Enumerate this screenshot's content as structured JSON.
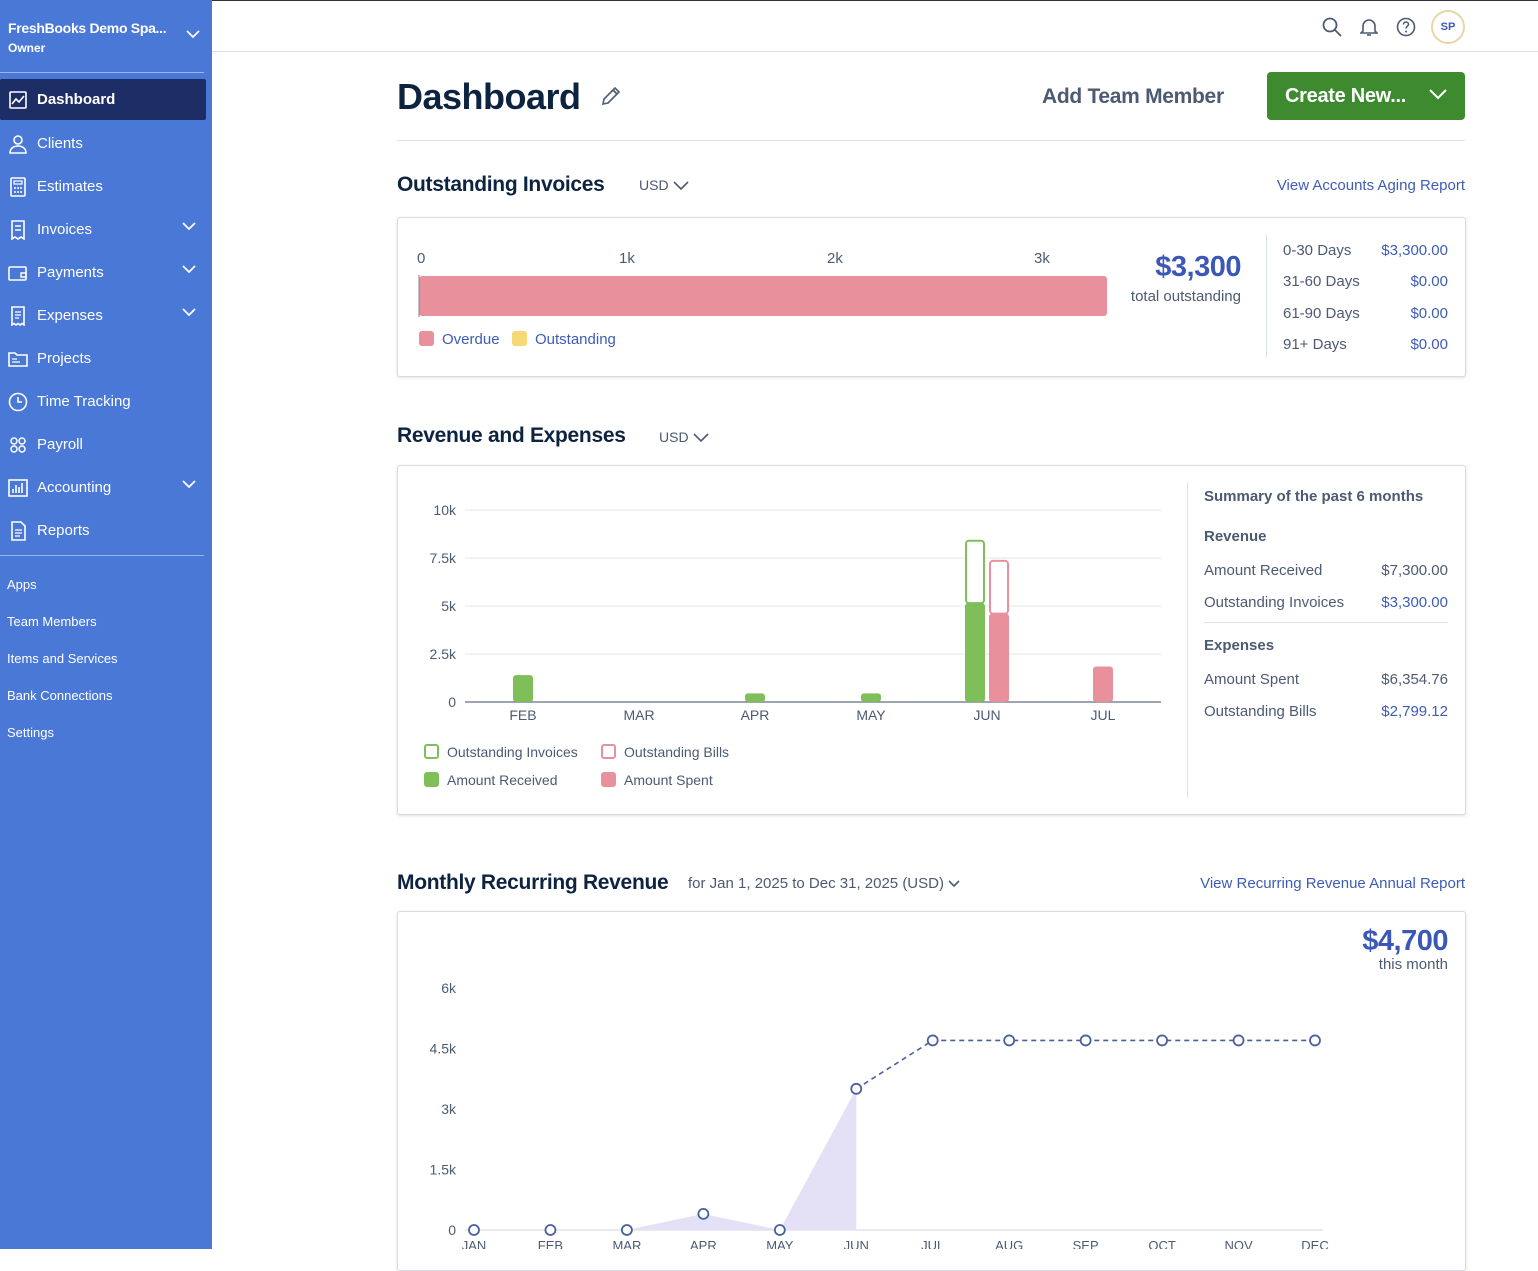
{
  "sidebar": {
    "business_name": "FreshBooks Demo Spa...",
    "role": "Owner",
    "nav": [
      {
        "label": "Dashboard",
        "icon": "chart-icon"
      },
      {
        "label": "Clients",
        "icon": "user-icon"
      },
      {
        "label": "Estimates",
        "icon": "calculator-icon"
      },
      {
        "label": "Invoices",
        "icon": "invoice-icon"
      },
      {
        "label": "Payments",
        "icon": "wallet-icon"
      },
      {
        "label": "Expenses",
        "icon": "receipt-icon"
      },
      {
        "label": "Projects",
        "icon": "folder-icon"
      },
      {
        "label": "Time Tracking",
        "icon": "clock-icon"
      },
      {
        "label": "Payroll",
        "icon": "people-icon"
      },
      {
        "label": "Accounting",
        "icon": "bar-chart-icon"
      },
      {
        "label": "Reports",
        "icon": "report-icon"
      }
    ],
    "secondary": [
      "Apps",
      "Team Members",
      "Items and Services",
      "Bank Connections",
      "Settings"
    ]
  },
  "topbar": {
    "avatar_initials": "SP"
  },
  "header": {
    "title": "Dashboard",
    "add_team": "Add Team Member",
    "create_new": "Create New..."
  },
  "outstanding": {
    "title": "Outstanding Invoices",
    "currency": "USD",
    "link": "View Accounts Aging Report",
    "total": "$3,300",
    "total_label": "total outstanding",
    "legend_overdue": "Overdue",
    "legend_outstanding": "Outstanding",
    "aging": [
      {
        "label": "0-30 Days",
        "value": "$3,300.00"
      },
      {
        "label": "31-60 Days",
        "value": "$0.00"
      },
      {
        "label": "61-90 Days",
        "value": "$0.00"
      },
      {
        "label": "91+ Days",
        "value": "$0.00"
      }
    ]
  },
  "revenue": {
    "title": "Revenue and Expenses",
    "currency": "USD",
    "legend": {
      "outstanding_invoices": "Outstanding Invoices",
      "outstanding_bills": "Outstanding Bills",
      "amount_received": "Amount Received",
      "amount_spent": "Amount Spent"
    },
    "summary": {
      "title": "Summary of the past 6 months",
      "revenue_heading": "Revenue",
      "expenses_heading": "Expenses",
      "amount_received_label": "Amount Received",
      "amount_received": "$7,300.00",
      "outstanding_invoices_label": "Outstanding Invoices",
      "outstanding_invoices": "$3,300.00",
      "amount_spent_label": "Amount Spent",
      "amount_spent": "$6,354.76",
      "outstanding_bills_label": "Outstanding Bills",
      "outstanding_bills": "$2,799.12"
    }
  },
  "mrr": {
    "title": "Monthly Recurring Revenue",
    "range": "for Jan 1, 2025 to Dec 31, 2025 (USD)",
    "link": "View Recurring Revenue Annual Report",
    "amount": "$4,700",
    "amount_label": "this month"
  },
  "chart_data": [
    {
      "type": "bar",
      "orientation": "horizontal",
      "ticks": [
        "0",
        "1k",
        "2k",
        "3k"
      ],
      "xlim": [
        0,
        3300
      ],
      "series": [
        {
          "name": "Overdue",
          "values": [
            3300
          ],
          "color": "#e8919c"
        },
        {
          "name": "Outstanding",
          "values": [
            0
          ],
          "color": "#f6d876"
        }
      ]
    },
    {
      "type": "bar",
      "categories": [
        "FEB",
        "MAR",
        "APR",
        "MAY",
        "JUN",
        "JUL"
      ],
      "ylim": [
        0,
        10000
      ],
      "yticks": [
        "0",
        "2.5k",
        "5k",
        "7.5k",
        "10k"
      ],
      "series": [
        {
          "name": "Amount Received",
          "values": [
            1400,
            0,
            450,
            450,
            5150,
            0
          ],
          "color": "#7fbf59"
        },
        {
          "name": "Outstanding Invoices",
          "values": [
            0,
            0,
            0,
            0,
            3300,
            0
          ],
          "color": "#7fbf59"
        },
        {
          "name": "Amount Spent",
          "values": [
            0,
            0,
            0,
            0,
            4600,
            1850
          ],
          "color": "#e8919c"
        },
        {
          "name": "Outstanding Bills",
          "values": [
            0,
            0,
            0,
            0,
            2800,
            0
          ],
          "color": "#e8919c"
        }
      ]
    },
    {
      "type": "line",
      "x": [
        "JAN",
        "FEB",
        "MAR",
        "APR",
        "MAY",
        "JUN",
        "JUL",
        "AUG",
        "SEP",
        "OCT",
        "NOV",
        "DEC"
      ],
      "values": [
        0,
        0,
        0,
        400,
        0,
        3500,
        4700,
        4700,
        4700,
        4700,
        4700,
        4700
      ],
      "projected_from_index": 5,
      "ylim": [
        0,
        6000
      ],
      "yticks": [
        "0",
        "1.5k",
        "3k",
        "4.5k",
        "6k"
      ]
    }
  ]
}
